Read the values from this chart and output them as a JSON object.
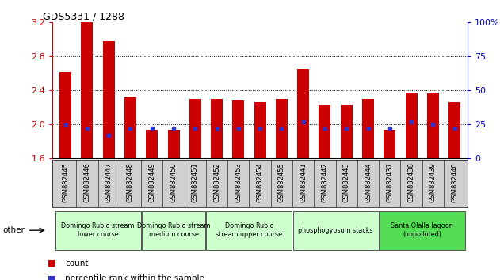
{
  "title": "GDS5331 / 1288",
  "samples": [
    "GSM832445",
    "GSM832446",
    "GSM832447",
    "GSM832448",
    "GSM832449",
    "GSM832450",
    "GSM832451",
    "GSM832452",
    "GSM832453",
    "GSM832454",
    "GSM832455",
    "GSM832441",
    "GSM832442",
    "GSM832443",
    "GSM832444",
    "GSM832437",
    "GSM832438",
    "GSM832439",
    "GSM832440"
  ],
  "count_values": [
    2.62,
    3.22,
    2.98,
    2.32,
    1.94,
    1.94,
    2.3,
    2.3,
    2.28,
    2.26,
    2.3,
    2.65,
    2.22,
    2.22,
    2.3,
    1.94,
    2.36,
    2.36,
    2.26
  ],
  "percentile_values": [
    25,
    22,
    17,
    22,
    22,
    22,
    22,
    22,
    22,
    22,
    22,
    27,
    22,
    22,
    22,
    22,
    27,
    25,
    22
  ],
  "ymin": 1.6,
  "ymax": 3.2,
  "y2min": 0,
  "y2max": 100,
  "yticks": [
    1.6,
    2.0,
    2.4,
    2.8,
    3.2
  ],
  "y2ticks": [
    0,
    25,
    50,
    75,
    100
  ],
  "bar_color": "#cc0000",
  "dot_color": "#3333cc",
  "bar_width": 0.55,
  "groups": [
    {
      "label": "Domingo Rubio stream\nlower course",
      "start": 0,
      "end": 3,
      "color": "#ccffcc"
    },
    {
      "label": "Domingo Rubio stream\nmedium course",
      "start": 4,
      "end": 6,
      "color": "#ccffcc"
    },
    {
      "label": "Domingo Rubio\nstream upper course",
      "start": 7,
      "end": 10,
      "color": "#ccffcc"
    },
    {
      "label": "phosphogypsum stacks",
      "start": 11,
      "end": 14,
      "color": "#ccffcc"
    },
    {
      "label": "Santa Olalla lagoon\n(unpolluted)",
      "start": 15,
      "end": 18,
      "color": "#55dd55"
    }
  ],
  "legend_count_label": "count",
  "legend_percentile_label": "percentile rank within the sample",
  "other_label": "other",
  "axis_color_left": "#cc0000",
  "axis_color_right": "#0000cc",
  "grid_dotted_at": [
    2.0,
    2.4,
    2.8
  ],
  "bg_xtick": "#d0d0d0"
}
